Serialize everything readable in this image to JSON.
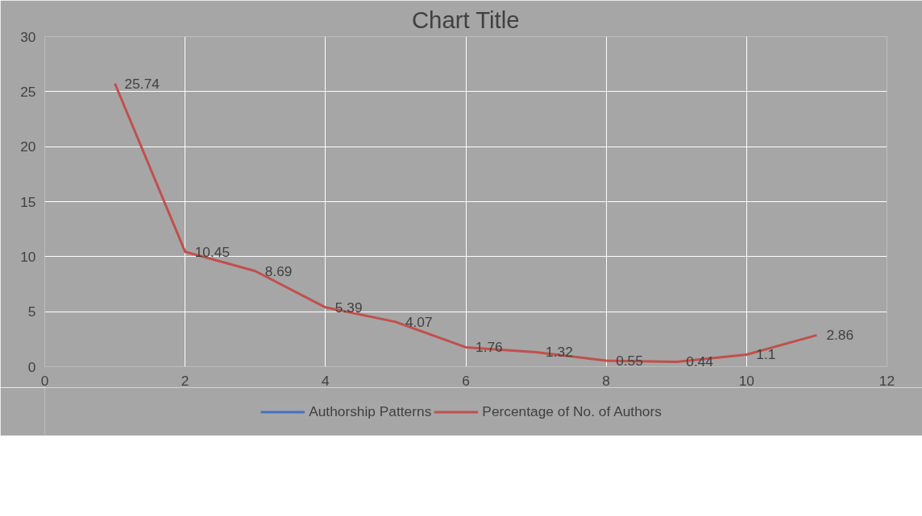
{
  "chart_data": {
    "type": "line",
    "title": "Chart Title",
    "x": [
      1,
      2,
      3,
      4,
      5,
      6,
      7,
      8,
      9,
      10,
      11
    ],
    "series": [
      {
        "name": "Authorship Patterns",
        "color": "#4472c4",
        "values": [
          null,
          null,
          null,
          null,
          null,
          null,
          null,
          null,
          null,
          null,
          null
        ]
      },
      {
        "name": "Percentage of No. of Authors",
        "color": "#c0504d",
        "values": [
          25.74,
          10.45,
          8.69,
          5.39,
          4.07,
          1.76,
          1.32,
          0.55,
          0.44,
          1.1,
          2.86
        ]
      }
    ],
    "xlim": [
      0,
      12
    ],
    "xticks": [
      0,
      2,
      4,
      6,
      8,
      10,
      12
    ],
    "ylim": [
      0,
      30
    ],
    "yticks": [
      0,
      5,
      10,
      15,
      20,
      25,
      30
    ],
    "grid": true,
    "legend": "bottom",
    "data_labels": true,
    "line_style": "solid",
    "marker": "none"
  }
}
